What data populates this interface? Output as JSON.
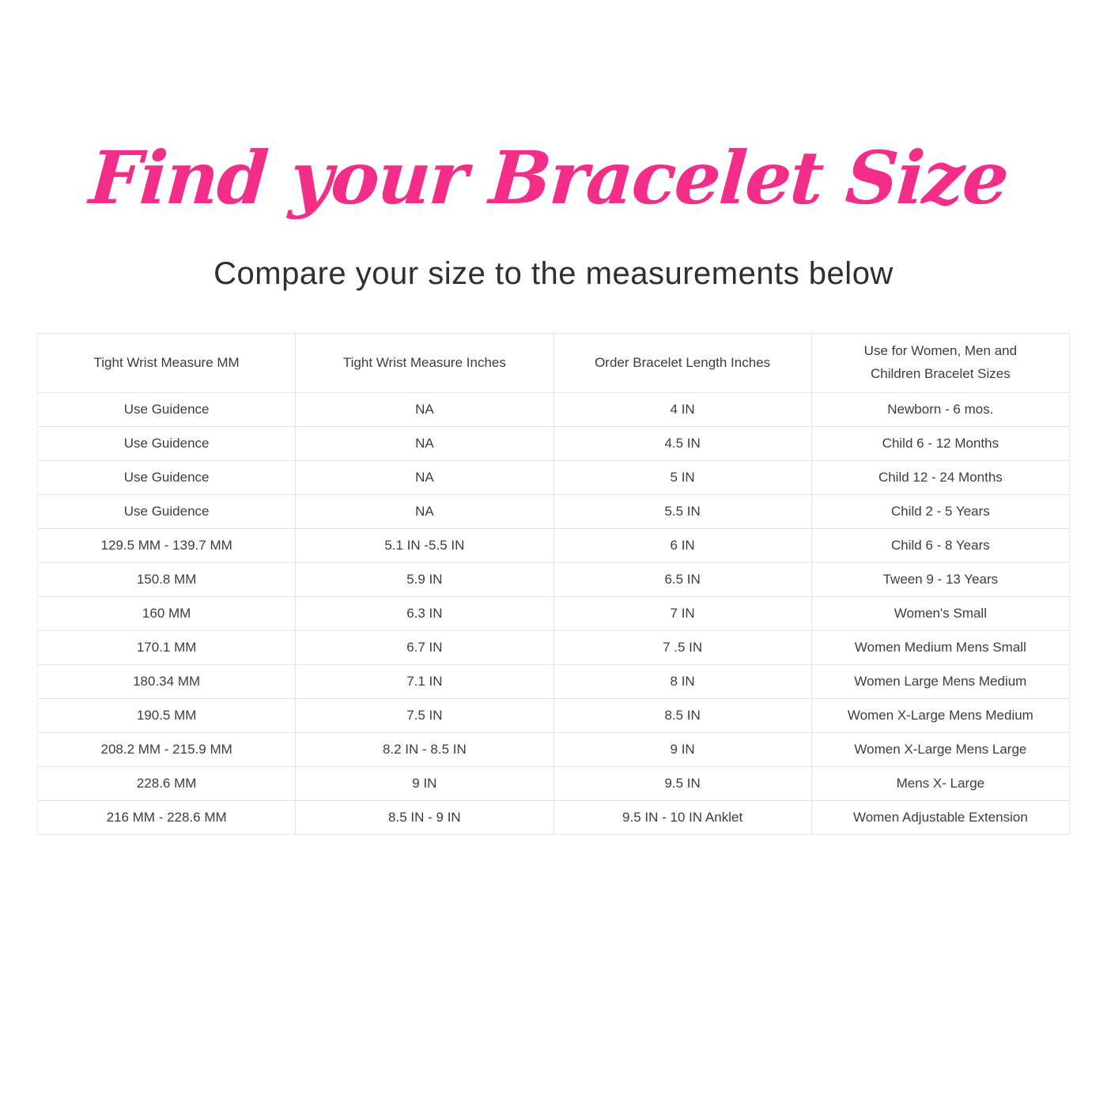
{
  "page": {
    "title": "Find your Bracelet Size",
    "subtitle": "Compare your size to the measurements below",
    "title_color": "#f22e88",
    "text_color": "#3d3d3d",
    "border_color": "#e7e7e7"
  },
  "table": {
    "columns": [
      "Tight Wrist Measure MM",
      "Tight Wrist Measure Inches",
      "Order Bracelet Length Inches",
      "Use for Women, Men and Children Bracelet Sizes"
    ],
    "rows": [
      [
        "Use Guidence",
        "NA",
        "4 IN",
        "Newborn - 6 mos."
      ],
      [
        "Use Guidence",
        "NA",
        "4.5 IN",
        "Child 6 - 12 Months"
      ],
      [
        "Use Guidence",
        "NA",
        "5 IN",
        "Child 12 - 24 Months"
      ],
      [
        "Use Guidence",
        "NA",
        "5.5 IN",
        "Child 2 - 5 Years"
      ],
      [
        "129.5 MM - 139.7 MM",
        "5.1 IN -5.5 IN",
        "6 IN",
        "Child 6 - 8 Years"
      ],
      [
        "150.8 MM",
        "5.9 IN",
        "6.5 IN",
        "Tween 9 - 13 Years"
      ],
      [
        "160 MM",
        "6.3 IN",
        "7 IN",
        "Women's Small"
      ],
      [
        "170.1 MM",
        "6.7 IN",
        "7 .5 IN",
        "Women Medium Mens Small"
      ],
      [
        "180.34 MM",
        "7.1 IN",
        "8 IN",
        "Women Large Mens Medium"
      ],
      [
        "190.5 MM",
        "7.5 IN",
        "8.5 IN",
        "Women X-Large Mens Medium"
      ],
      [
        "208.2 MM - 215.9 MM",
        "8.2 IN - 8.5 IN",
        "9 IN",
        "Women X-Large Mens Large"
      ],
      [
        "228.6 MM",
        "9 IN",
        "9.5 IN",
        "Mens X- Large"
      ],
      [
        "216 MM - 228.6 MM",
        "8.5 IN - 9 IN",
        "9.5 IN - 10 IN Anklet",
        "Women Adjustable Extension"
      ]
    ]
  }
}
